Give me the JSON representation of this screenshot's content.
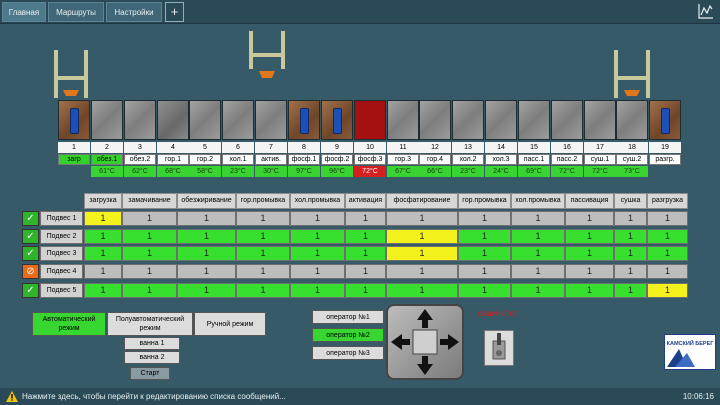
{
  "tabs": [
    {
      "label": "Главная"
    },
    {
      "label": "Маршруты"
    },
    {
      "label": "Настройки"
    }
  ],
  "add_tab_label": "+",
  "tanks": [
    {
      "num": "1",
      "name": "загр",
      "temp": "",
      "name_style": "green",
      "temp_style": "",
      "tank_style": "brown",
      "part": true
    },
    {
      "num": "2",
      "name": "обез.1",
      "temp": "61°C",
      "name_style": "green",
      "temp_style": "green",
      "tank_style": "",
      "part": false
    },
    {
      "num": "3",
      "name": "обез.2",
      "temp": "62°C",
      "name_style": "",
      "temp_style": "green",
      "tank_style": "",
      "part": false
    },
    {
      "num": "4",
      "name": "гор.1",
      "temp": "68°C",
      "name_style": "",
      "temp_style": "green",
      "tank_style": "dark",
      "part": false
    },
    {
      "num": "5",
      "name": "гор.2",
      "temp": "58°C",
      "name_style": "",
      "temp_style": "green",
      "tank_style": "",
      "part": false
    },
    {
      "num": "6",
      "name": "хол.1",
      "temp": "23°C",
      "name_style": "",
      "temp_style": "green",
      "tank_style": "",
      "part": false
    },
    {
      "num": "7",
      "name": "актив.",
      "temp": "30°C",
      "name_style": "",
      "temp_style": "green",
      "tank_style": "",
      "part": false
    },
    {
      "num": "8",
      "name": "фосф.1",
      "temp": "97°C",
      "name_style": "",
      "temp_style": "green",
      "tank_style": "brown",
      "part": true
    },
    {
      "num": "9",
      "name": "фосф.2",
      "temp": "96°C",
      "name_style": "",
      "temp_style": "green",
      "tank_style": "brown",
      "part": true
    },
    {
      "num": "10",
      "name": "фосф.3",
      "temp": "72°C",
      "name_style": "",
      "temp_style": "red",
      "tank_style": "red",
      "part": false
    },
    {
      "num": "11",
      "name": "гор.3",
      "temp": "67°C",
      "name_style": "",
      "temp_style": "green",
      "tank_style": "",
      "part": false
    },
    {
      "num": "12",
      "name": "гор.4",
      "temp": "66°C",
      "name_style": "",
      "temp_style": "green",
      "tank_style": "",
      "part": false
    },
    {
      "num": "13",
      "name": "хол.2",
      "temp": "23°C",
      "name_style": "",
      "temp_style": "green",
      "tank_style": "",
      "part": false
    },
    {
      "num": "14",
      "name": "хол.3",
      "temp": "24°C",
      "name_style": "",
      "temp_style": "green",
      "tank_style": "",
      "part": false
    },
    {
      "num": "15",
      "name": "пасс.1",
      "temp": "69°C",
      "name_style": "",
      "temp_style": "green",
      "tank_style": "",
      "part": false
    },
    {
      "num": "16",
      "name": "пасс.2",
      "temp": "72°C",
      "name_style": "",
      "temp_style": "green",
      "tank_style": "",
      "part": false
    },
    {
      "num": "17",
      "name": "суш.1",
      "temp": "72°C",
      "name_style": "",
      "temp_style": "green",
      "tank_style": "",
      "part": false
    },
    {
      "num": "18",
      "name": "суш.2",
      "temp": "73°C",
      "name_style": "",
      "temp_style": "green",
      "tank_style": "",
      "part": false
    },
    {
      "num": "19",
      "name": "разгр.",
      "temp": "",
      "name_style": "",
      "temp_style": "",
      "tank_style": "brown",
      "part": true
    }
  ],
  "table": {
    "columns": [
      "загрузка",
      "замачивание",
      "обезжиривание",
      "гор.промывка",
      "хол.промывка",
      "активация",
      "фосфатирование",
      "гор.промывка",
      "хол.промывка",
      "пассивация",
      "сушка",
      "разгрузка"
    ],
    "rows": [
      {
        "label": "Подвес 1",
        "status": "ok",
        "cells": [
          "y",
          "s",
          "s",
          "s",
          "s",
          "s",
          "s",
          "s",
          "s",
          "s",
          "s",
          "s"
        ]
      },
      {
        "label": "Подвес 2",
        "status": "ok",
        "cells": [
          "g",
          "g",
          "g",
          "g",
          "g",
          "g",
          "y",
          "g",
          "g",
          "g",
          "g",
          "g"
        ]
      },
      {
        "label": "Подвес 3",
        "status": "ok",
        "cells": [
          "g",
          "g",
          "g",
          "g",
          "g",
          "g",
          "y",
          "g",
          "g",
          "g",
          "g",
          "g"
        ]
      },
      {
        "label": "Подвес 4",
        "status": "stop",
        "cells": [
          "s",
          "s",
          "s",
          "s",
          "s",
          "s",
          "s",
          "s",
          "s",
          "s",
          "s",
          "s"
        ]
      },
      {
        "label": "Подвес 5",
        "status": "ok",
        "cells": [
          "g",
          "g",
          "g",
          "g",
          "g",
          "g",
          "g",
          "g",
          "g",
          "g",
          "g",
          "y"
        ]
      }
    ],
    "cell_value": "1",
    "ok_glyph": "✓",
    "stop_glyph": "⊘"
  },
  "modes": {
    "auto": "Автоматический режим",
    "semi": "Полуавтоматический режим",
    "manual": "Ручной режим"
  },
  "baths": {
    "bath1": "ванна 1",
    "bath2": "ванна 2",
    "start": "Старт"
  },
  "operators": {
    "op1": "оператор №1",
    "op2": "оператор №2",
    "op3": "оператор №3"
  },
  "estop_label": "ОБЩИЙ СТОП",
  "logo_text": "КАМСКИЙ БЕРЕГ",
  "status": {
    "message": "Нажмите здесь, чтобы перейти к редактированию списка сообщений...",
    "time": "10:06:16"
  },
  "colors": {
    "background": "#365a68",
    "active_green": "#37e02f",
    "highlight_yellow": "#f4f21c",
    "alarm_red": "#a51010"
  }
}
